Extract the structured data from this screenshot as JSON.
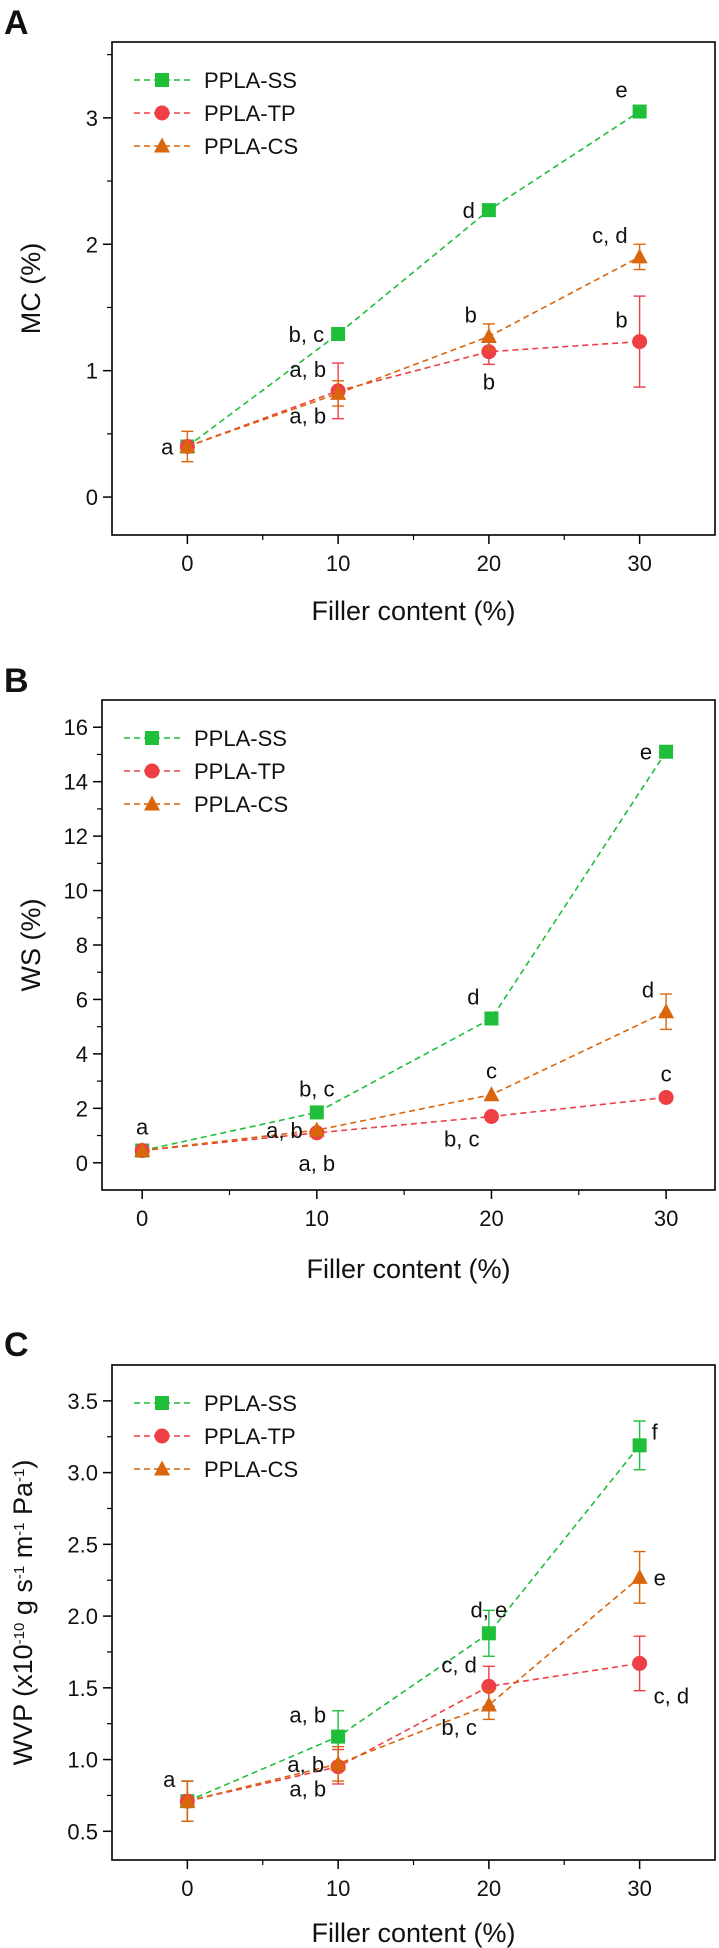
{
  "chart_data": [
    {
      "panel": "A",
      "type": "line",
      "xlabel": "Filler content (%)",
      "ylabel": "MC (%)",
      "xlim": [
        -5,
        35
      ],
      "ylim": [
        -0.3,
        3.6
      ],
      "xticks": [
        0,
        10,
        20,
        30
      ],
      "yticks": [
        0,
        1,
        2,
        3
      ],
      "legend_position": "top-left",
      "series": [
        {
          "name": "PPLA-SS",
          "marker": "square",
          "color": "#1fbf3a",
          "x": [
            0,
            10,
            20,
            30
          ],
          "y": [
            0.4,
            1.29,
            2.27,
            3.05
          ],
          "err": [
            0.0,
            0.0,
            0.0,
            0.03
          ]
        },
        {
          "name": "PPLA-TP",
          "marker": "circle",
          "color": "#ee3f45",
          "x": [
            0,
            10,
            20,
            30
          ],
          "y": [
            0.4,
            0.84,
            1.15,
            1.23
          ],
          "err": [
            0.0,
            0.22,
            0.1,
            0.36
          ]
        },
        {
          "name": "PPLA-CS",
          "marker": "triangle",
          "color": "#d9660c",
          "x": [
            0,
            10,
            20,
            30
          ],
          "y": [
            0.4,
            0.82,
            1.27,
            1.9
          ],
          "err": [
            0.12,
            0.1,
            0.1,
            0.1
          ]
        }
      ],
      "annotations": [
        {
          "text": "a",
          "x": 0,
          "y": 0.4,
          "anchor": "left"
        },
        {
          "text": "b, c",
          "x": 10,
          "y": 1.29,
          "anchor": "left"
        },
        {
          "text": "a, b",
          "x": 10,
          "y": 0.84,
          "anchor": "left-above"
        },
        {
          "text": "a, b",
          "x": 10,
          "y": 0.82,
          "anchor": "left-below"
        },
        {
          "text": "d",
          "x": 20,
          "y": 2.27,
          "anchor": "left"
        },
        {
          "text": "b",
          "x": 20,
          "y": 1.27,
          "anchor": "left-above"
        },
        {
          "text": "b",
          "x": 20,
          "y": 1.15,
          "anchor": "below"
        },
        {
          "text": "e",
          "x": 30,
          "y": 3.05,
          "anchor": "left-above"
        },
        {
          "text": "c, d",
          "x": 30,
          "y": 1.9,
          "anchor": "left-above"
        },
        {
          "text": "b",
          "x": 30,
          "y": 1.23,
          "anchor": "left-above"
        }
      ]
    },
    {
      "panel": "B",
      "type": "line",
      "xlabel": "Filler content (%)",
      "ylabel": "WS (%)",
      "xlim": [
        -2.3,
        32.8
      ],
      "ylim": [
        -1.0,
        17.0
      ],
      "xticks": [
        0,
        10,
        20,
        30
      ],
      "yticks": [
        0,
        2,
        4,
        6,
        8,
        10,
        12,
        14,
        16
      ],
      "legend_position": "top-left",
      "series": [
        {
          "name": "PPLA-SS",
          "marker": "square",
          "color": "#1fbf3a",
          "x": [
            0,
            10,
            20,
            30
          ],
          "y": [
            0.45,
            1.85,
            5.3,
            15.1
          ],
          "err": [
            0,
            0,
            0,
            0
          ]
        },
        {
          "name": "PPLA-TP",
          "marker": "circle",
          "color": "#ee3f45",
          "x": [
            0,
            10,
            20,
            30
          ],
          "y": [
            0.45,
            1.1,
            1.7,
            2.4
          ],
          "err": [
            0,
            0,
            0,
            0
          ]
        },
        {
          "name": "PPLA-CS",
          "marker": "triangle",
          "color": "#d9660c",
          "x": [
            0,
            10,
            20,
            30
          ],
          "y": [
            0.45,
            1.2,
            2.5,
            5.55
          ],
          "err": [
            0,
            0,
            0,
            0.65
          ]
        }
      ],
      "annotations": [
        {
          "text": "a",
          "x": 0,
          "y": 0.45,
          "anchor": "above"
        },
        {
          "text": "b, c",
          "x": 10,
          "y": 1.85,
          "anchor": "above"
        },
        {
          "text": "a, b",
          "x": 10,
          "y": 1.2,
          "anchor": "left"
        },
        {
          "text": "a, b",
          "x": 10,
          "y": 1.1,
          "anchor": "below"
        },
        {
          "text": "d",
          "x": 20,
          "y": 5.3,
          "anchor": "left-above"
        },
        {
          "text": "c",
          "x": 20,
          "y": 2.5,
          "anchor": "above"
        },
        {
          "text": "b, c",
          "x": 20,
          "y": 1.7,
          "anchor": "left-below"
        },
        {
          "text": "e",
          "x": 30,
          "y": 15.1,
          "anchor": "left"
        },
        {
          "text": "d",
          "x": 30,
          "y": 5.55,
          "anchor": "left-above"
        },
        {
          "text": "c",
          "x": 30,
          "y": 2.4,
          "anchor": "above"
        }
      ]
    },
    {
      "panel": "C",
      "type": "line",
      "xlabel": "Filler content (%)",
      "ylabel": "WVP (x10^-10 g s^-1 m^-1 Pa^-1)",
      "xlim": [
        -5,
        35
      ],
      "ylim": [
        0.3,
        3.75
      ],
      "xticks": [
        0,
        10,
        20,
        30
      ],
      "yticks": [
        0.5,
        1.0,
        1.5,
        2.0,
        2.5,
        3.0,
        3.5
      ],
      "legend_position": "top-left",
      "series": [
        {
          "name": "PPLA-SS",
          "marker": "square",
          "color": "#1fbf3a",
          "x": [
            0,
            10,
            20,
            30
          ],
          "y": [
            0.71,
            1.16,
            1.88,
            3.19
          ],
          "err": [
            0.14,
            0.18,
            0.16,
            0.17
          ]
        },
        {
          "name": "PPLA-TP",
          "marker": "circle",
          "color": "#ee3f45",
          "x": [
            0,
            10,
            20,
            30
          ],
          "y": [
            0.71,
            0.95,
            1.51,
            1.67
          ],
          "err": [
            0.14,
            0.12,
            0.14,
            0.19
          ]
        },
        {
          "name": "PPLA-CS",
          "marker": "triangle",
          "color": "#d9660c",
          "x": [
            0,
            10,
            20,
            30
          ],
          "y": [
            0.71,
            0.97,
            1.38,
            2.27
          ],
          "err": [
            0.14,
            0.12,
            0.1,
            0.18
          ]
        }
      ],
      "annotations": [
        {
          "text": "a",
          "x": 0,
          "y": 0.71,
          "anchor": "left-above"
        },
        {
          "text": "a, b",
          "x": 10,
          "y": 1.16,
          "anchor": "left-above"
        },
        {
          "text": "a, b",
          "x": 10,
          "y": 0.97,
          "anchor": "left"
        },
        {
          "text": "a, b",
          "x": 10,
          "y": 0.95,
          "anchor": "left-below"
        },
        {
          "text": "d, e",
          "x": 20,
          "y": 1.88,
          "anchor": "above"
        },
        {
          "text": "c, d",
          "x": 20,
          "y": 1.51,
          "anchor": "left-above"
        },
        {
          "text": "b, c",
          "x": 20,
          "y": 1.38,
          "anchor": "left-below"
        },
        {
          "text": "f",
          "x": 30,
          "y": 3.19,
          "anchor": "right-above"
        },
        {
          "text": "e",
          "x": 30,
          "y": 2.27,
          "anchor": "right"
        },
        {
          "text": "c, d",
          "x": 30,
          "y": 1.67,
          "anchor": "right-below"
        }
      ]
    }
  ]
}
